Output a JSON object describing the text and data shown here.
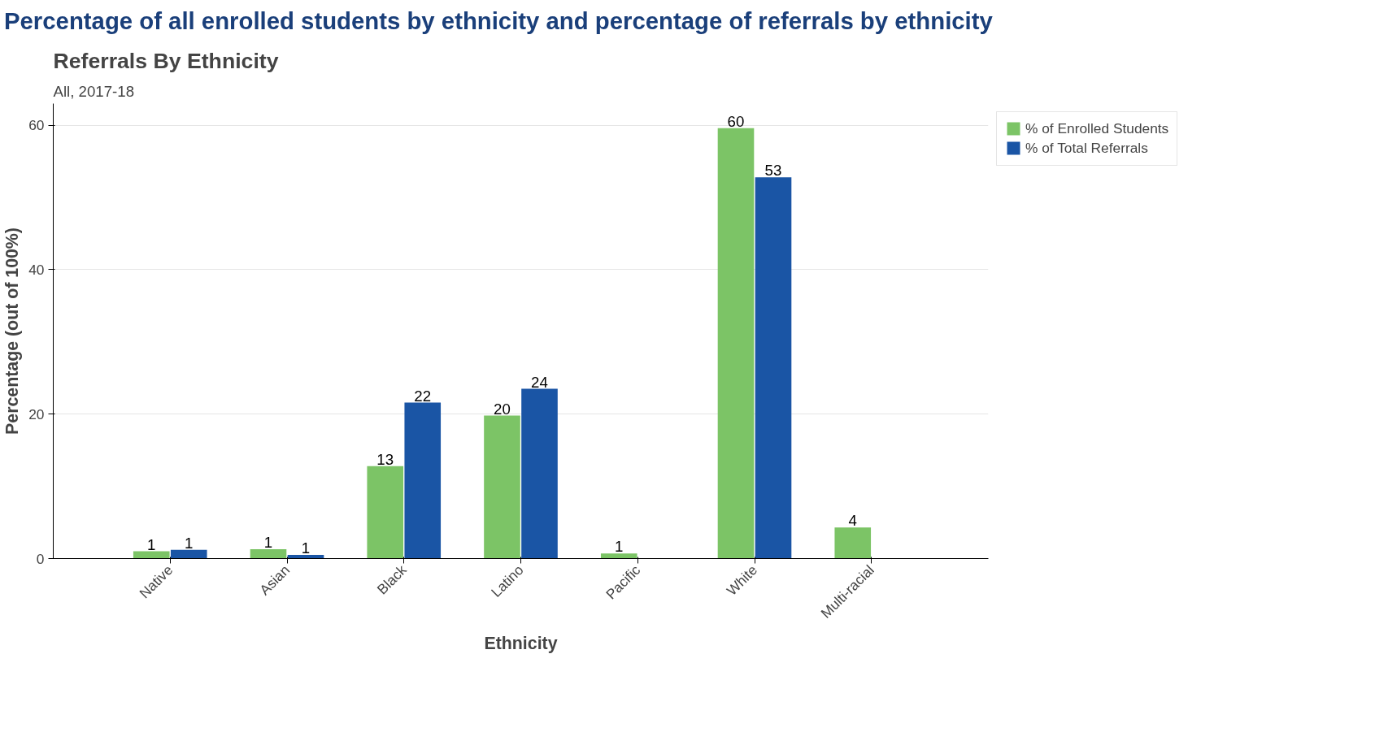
{
  "chart_data": {
    "type": "bar",
    "title": "Referrals By Ethnicity",
    "subtitle": "All, 2017-18",
    "annotations": [
      "Percentage of all enrolled students by ethnicity and percentage of referrals by ethnicity"
    ],
    "xlabel": "Ethnicity",
    "ylabel": "Percentage (out of 100%)",
    "categories": [
      "Native",
      "Asian",
      "Black",
      "Latino",
      "Pacific",
      "White",
      "Multi-racial"
    ],
    "series": [
      {
        "name": "% of Enrolled Students",
        "color": "#7cc466",
        "values": [
          1.0,
          1.3,
          12.8,
          19.8,
          0.7,
          59.6,
          4.3
        ],
        "value_labels": [
          "1",
          "1",
          "13",
          "20",
          "1",
          "60",
          "4"
        ]
      },
      {
        "name": "% of Total Referrals",
        "color": "#1a55a5",
        "values": [
          1.2,
          0.5,
          21.6,
          23.5,
          null,
          52.8,
          null
        ],
        "value_labels": [
          "1",
          "1",
          "22",
          "24",
          null,
          "53",
          null
        ]
      }
    ],
    "ylim": [
      0,
      63
    ],
    "yticks": [
      0,
      20,
      40,
      60
    ],
    "grid": "y",
    "legend": "top right"
  }
}
